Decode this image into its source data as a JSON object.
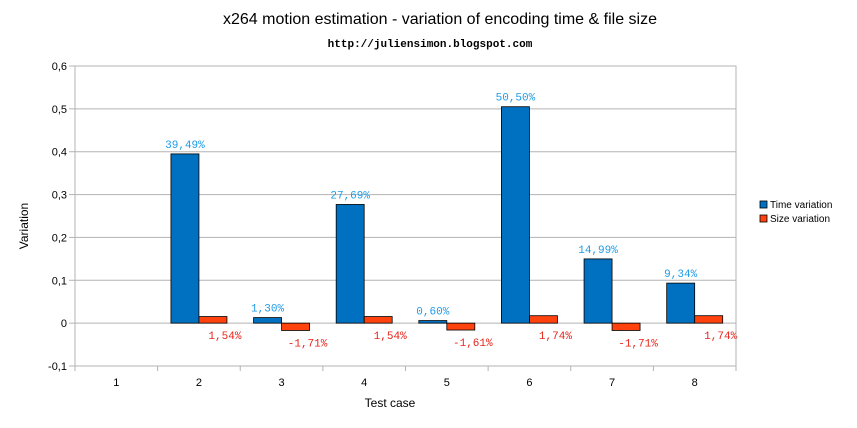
{
  "chart_data": {
    "type": "bar",
    "title": "x264 motion estimation - variation of encoding time & file size",
    "subtitle": "http://juliensimon.blogspot.com",
    "xlabel": "Test case",
    "ylabel": "Variation",
    "ylim": [
      -0.1,
      0.6
    ],
    "yticks": [
      "-0,1",
      "0",
      "0,1",
      "0,2",
      "0,3",
      "0,4",
      "0,5",
      "0,6"
    ],
    "ytick_values": [
      -0.1,
      0,
      0.1,
      0.2,
      0.3,
      0.4,
      0.5,
      0.6
    ],
    "categories": [
      "1",
      "2",
      "3",
      "4",
      "5",
      "6",
      "7",
      "8"
    ],
    "grid": true,
    "legend_position": "right",
    "series": [
      {
        "name": "Time variation",
        "color": "#0070c0",
        "label_color": "#1e9be6",
        "values": [
          null,
          0.3949,
          0.013,
          0.2769,
          0.006,
          0.505,
          0.1499,
          0.0934
        ],
        "labels": [
          "",
          "39,49%",
          "1,30%",
          "27,69%",
          "0,60%",
          "50,50%",
          "14,99%",
          "9,34%"
        ]
      },
      {
        "name": "Size variation",
        "color": "#ff420e",
        "label_color": "#e8251c",
        "values": [
          null,
          0.0154,
          -0.0171,
          0.0154,
          -0.0161,
          0.0174,
          -0.0171,
          0.0174
        ],
        "labels": [
          "",
          "1,54%",
          "-1,71%",
          "1,54%",
          "-1,61%",
          "1,74%",
          "-1,71%",
          "1,74%"
        ]
      }
    ]
  }
}
